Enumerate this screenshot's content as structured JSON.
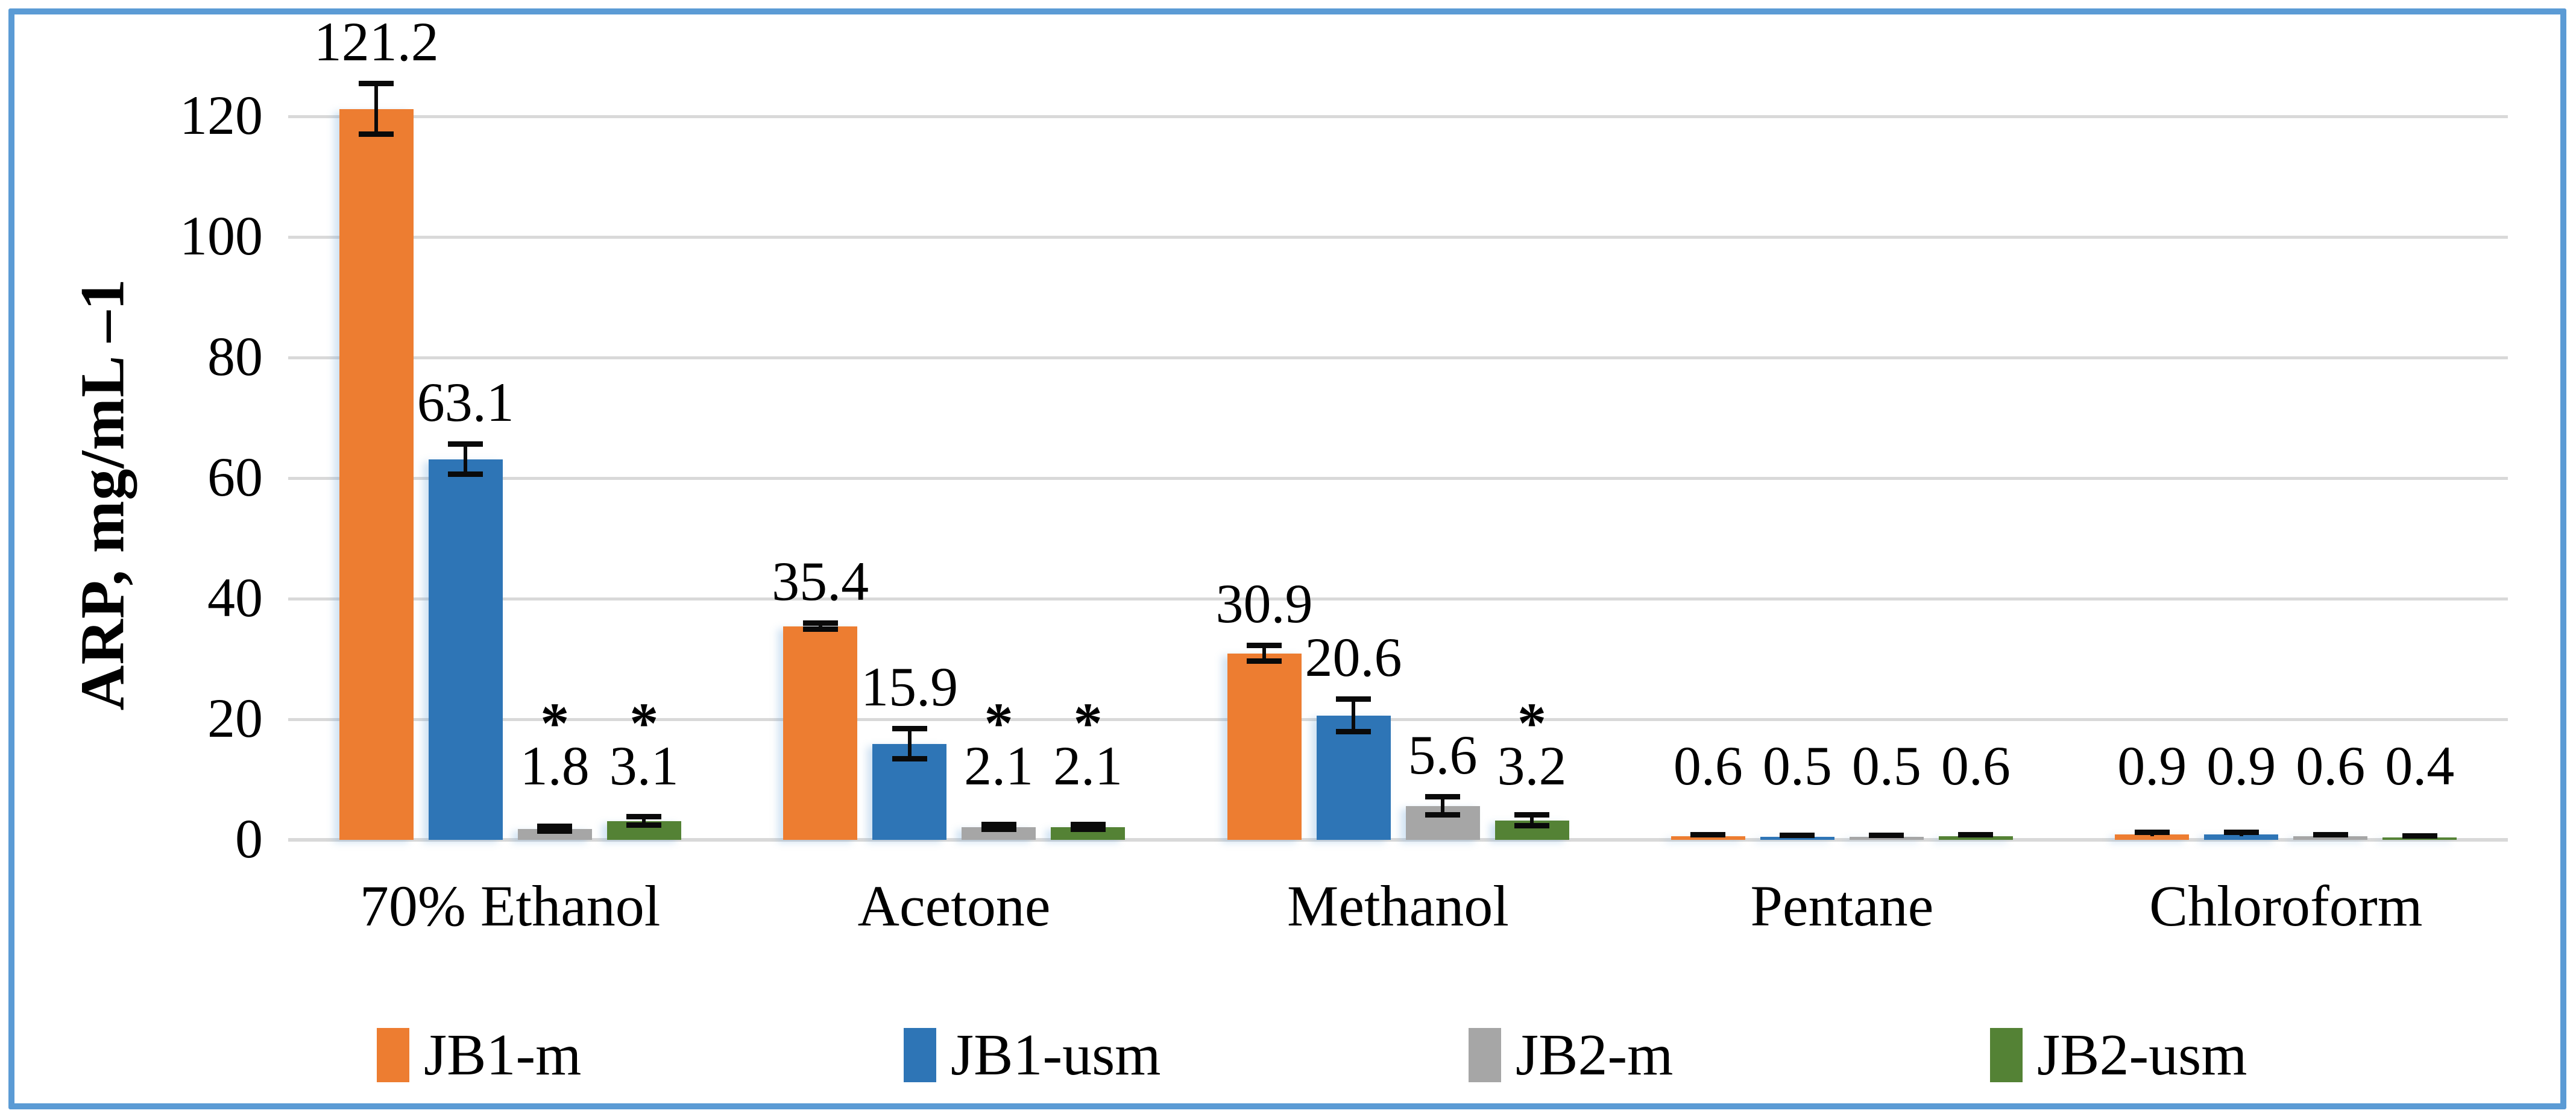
{
  "chart_data": {
    "type": "bar",
    "title": "",
    "ylabel": "ARP, mg/mL –1",
    "xlabel": "",
    "ylim": [
      0,
      133
    ],
    "yticks": [
      0,
      20,
      40,
      60,
      80,
      100,
      120
    ],
    "grid": true,
    "legend_position": "bottom",
    "categories": [
      "70% Ethanol",
      "Acetone",
      "Methanol",
      "Pentane",
      "Chloroform"
    ],
    "series": [
      {
        "name": "JB1-m",
        "color": "#ED7D31",
        "values": [
          121.2,
          35.4,
          30.9,
          0.6,
          0.9
        ],
        "errors": [
          4.2,
          0.5,
          1.3,
          0.2,
          0.3
        ],
        "asterisks": [
          false,
          false,
          false,
          false,
          false
        ]
      },
      {
        "name": "JB1-usm",
        "color": "#2E75B6",
        "values": [
          63.1,
          15.9,
          20.6,
          0.5,
          0.9
        ],
        "errors": [
          2.5,
          2.5,
          2.7,
          0.2,
          0.3
        ],
        "asterisks": [
          false,
          false,
          false,
          false,
          false
        ]
      },
      {
        "name": "JB2-m",
        "color": "#A6A6A6",
        "values": [
          1.8,
          2.1,
          5.6,
          0.5,
          0.6
        ],
        "errors": [
          0.4,
          0.4,
          1.5,
          0.2,
          0.2
        ],
        "asterisks": [
          true,
          true,
          false,
          false,
          false
        ]
      },
      {
        "name": "JB2-usm",
        "color": "#548235",
        "values": [
          3.1,
          2.1,
          3.2,
          0.6,
          0.4
        ],
        "errors": [
          0.7,
          0.4,
          0.9,
          0.2,
          0.2
        ],
        "asterisks": [
          true,
          true,
          true,
          false,
          false
        ]
      }
    ],
    "annotations": {
      "significance_symbol": "*"
    }
  },
  "style": {
    "border_color": "#5B9BD5",
    "gridline_color": "#D9D9D9",
    "background": "#FFFFFF",
    "text_color": "#000000"
  }
}
